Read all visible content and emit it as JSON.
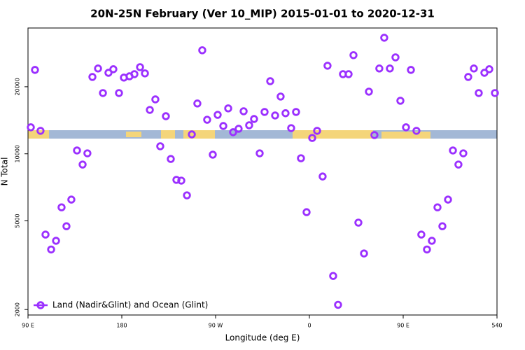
{
  "chart_data": {
    "type": "scatter",
    "title": "20N-25N February (Ver 10_MIP)   2015-01-01 to 2020-12-31",
    "x_label": "Longitude (deg E)",
    "y_label": "N Total",
    "xlim": [
      90,
      540
    ],
    "xticks": [
      {
        "value": 90,
        "label": "90 E"
      },
      180,
      {
        "value": 270,
        "label": "90 W"
      },
      {
        "value": 360,
        "label": "0"
      },
      {
        "value": 450,
        "label": "90 E"
      },
      540
    ],
    "ylim": [
      1890,
      36700
    ],
    "yticks": [
      2000,
      5000,
      10000,
      20000
    ],
    "log_y": true,
    "legend": "lower left",
    "series": [
      {
        "name": "Land (Nadir&Glint) and Ocean (Glint)",
        "color": "#9b30ff",
        "x": [
          92.7,
          96.7,
          102,
          106.8,
          112.2,
          116.9,
          122.2,
          126.9,
          131.6,
          137,
          142.4,
          147,
          151.8,
          157.2,
          161.9,
          167.2,
          171.9,
          177.3,
          182,
          187.4,
          192.1,
          197.5,
          202.2,
          206.9,
          212.2,
          216.9,
          222.3,
          227,
          232.4,
          237.1,
          242.5,
          247.2,
          252.5,
          257.2,
          261.9,
          267.3,
          272,
          277.4,
          282.1,
          286.8,
          292.1,
          296.9,
          302.2,
          306.9,
          312.3,
          317,
          322.4,
          327.1,
          332.4,
          337.1,
          342.5,
          347.2,
          351.9,
          357.3,
          362.7,
          367.4,
          372.7,
          377.4,
          382.8,
          387.5,
          392.2,
          397.6,
          402.3,
          407,
          412.4,
          417.1,
          422.4,
          427.1,
          431.8,
          437.2,
          442.6,
          447.3,
          452.7,
          457.4,
          462.7,
          467.4,
          472.8,
          477.5,
          482.9,
          487.6,
          493,
          497.7,
          503,
          507.7,
          512.4,
          517.8,
          522.5,
          527.9,
          532.6,
          538
        ],
        "values": [
          13150,
          23800,
          12680,
          4340,
          3720,
          4070,
          5750,
          4730,
          6230,
          10350,
          8950,
          10050,
          22130,
          24150,
          18740,
          23100,
          23970,
          18740,
          21980,
          22280,
          22780,
          24490,
          22960,
          15740,
          17550,
          10810,
          14750,
          9480,
          7640,
          7580,
          6510,
          12220,
          16820,
          29150,
          14220,
          9910,
          14960,
          13330,
          15990,
          12500,
          12950,
          15520,
          13430,
          14330,
          10050,
          15410,
          21180,
          14860,
          18070,
          15210,
          13040,
          15410,
          9550,
          5470,
          11780,
          12680,
          7910,
          24850,
          2830,
          2100,
          22780,
          22780,
          27720,
          4910,
          3570,
          19010,
          12140,
          24150,
          33190,
          24150,
          27100,
          17300,
          13150,
          23800,
          12680,
          4340,
          3720,
          4070,
          5750,
          4730,
          6230,
          10350,
          8950,
          10050,
          22130,
          24150,
          18740,
          23100,
          23970,
          18740
        ]
      }
    ]
  }
}
